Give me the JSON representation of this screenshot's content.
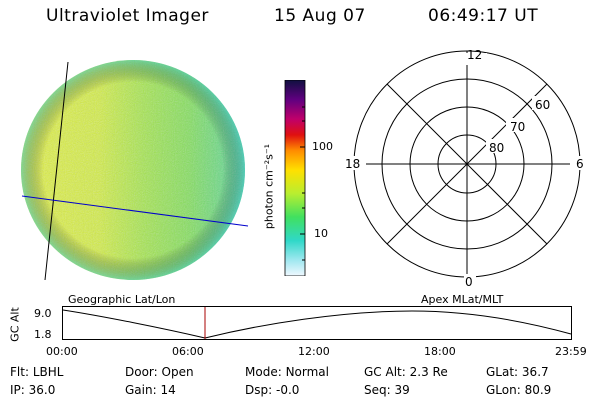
{
  "header": {
    "title": "Ultraviolet Imager",
    "date": "15 Aug 07",
    "time": "06:49:17 UT"
  },
  "colorbar": {
    "unit": "photon cm⁻²s⁻¹",
    "tick_100": "100",
    "tick_10": "10"
  },
  "polar": {
    "mlt_top": "12",
    "mlt_left": "18",
    "mlt_right": "6",
    "mlt_bottom": "0",
    "lat_60": "60",
    "lat_70": "70",
    "lat_80": "80"
  },
  "labels": {
    "geo": "Geographic Lat/Lon",
    "apex": "Apex MLat/MLT"
  },
  "orbit": {
    "ylabel": "GC Alt",
    "y_top": "9.0",
    "y_bottom": "1.8",
    "times": [
      "00:00",
      "06:00",
      "12:00",
      "18:00",
      "23:59"
    ]
  },
  "info": {
    "filter_label": "Flt:",
    "filter": "LBHL",
    "ip_label": "IP:",
    "ip": "36.0",
    "door_label": "Door:",
    "door": "Open",
    "gain_label": "Gain:",
    "gain": "14",
    "mode_label": "Mode:",
    "mode": "Normal",
    "dsp_label": "Dsp:",
    "dsp": "-0.0",
    "gcalt_label": "GC Alt:",
    "gcalt": "2.3 Re",
    "seq_label": "Seq:",
    "seq": "39",
    "glat_label": "GLat:",
    "glat": "36.7",
    "glon_label": "GLon:",
    "glon": "80.9"
  },
  "colors": {
    "disk_yellow": "#d8ee3a",
    "disk_green": "#92e45a",
    "disk_cyan": "#4fd6b8",
    "axis_blue": "#0000cc",
    "time_marker": "#aa0000"
  }
}
